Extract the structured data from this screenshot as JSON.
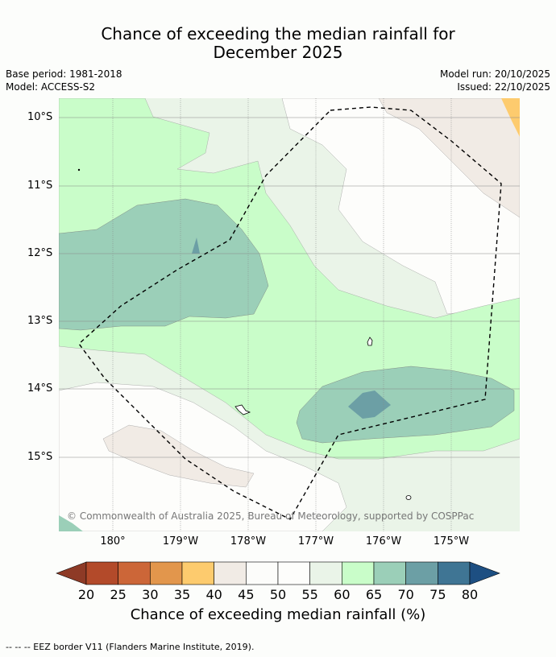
{
  "title": {
    "line1": "Chance of exceeding the median rainfall for",
    "line2": "December 2025"
  },
  "meta": {
    "base_period": "Base period: 1981-2018",
    "model": "Model: ACCESS-S2",
    "model_run": "Model run: 20/10/2025",
    "issued": "Issued: 22/10/2025"
  },
  "axes": {
    "lat_labels": [
      "10°S",
      "11°S",
      "12°S",
      "13°S",
      "14°S",
      "15°S"
    ],
    "lon_labels": [
      "180°",
      "179°W",
      "178°W",
      "177°W",
      "176°W",
      "175°W"
    ]
  },
  "copyright": "© Commonwealth of Australia 2025, Bureau of Meteorology, supported by COSPPac",
  "colorbar": {
    "ticks": [
      "20",
      "25",
      "30",
      "35",
      "40",
      "45",
      "50",
      "55",
      "60",
      "65",
      "70",
      "75",
      "80"
    ],
    "colors": [
      "#b34a2a",
      "#cc6638",
      "#e2964c",
      "#fdcb6e",
      "#f1ebe5",
      "#fcfcfa",
      "#fdfdfb",
      "#eaf4e8",
      "#c9fdc9",
      "#9bcfb8",
      "#6c9fa5",
      "#3f7594"
    ],
    "under_color": "#8e3a26",
    "over_color": "#1d4f82",
    "label": "Chance of exceeding median rainfall (%)"
  },
  "footer": "--  --  -- EEZ border V11 (Flanders Marine Institute, 2019)."
}
